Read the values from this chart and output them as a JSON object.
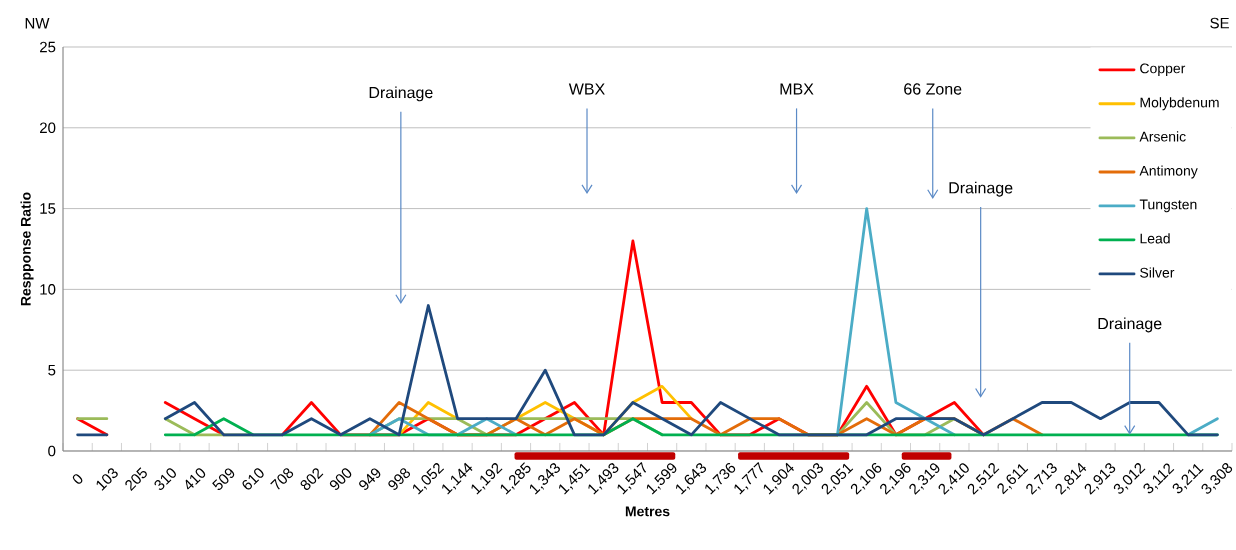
{
  "chart_data": {
    "type": "line",
    "xlabel": "Metres",
    "ylabel": "Respponse Ratio",
    "categories": [
      "0",
      "103",
      "205",
      "310",
      "410",
      "509",
      "610",
      "708",
      "802",
      "900",
      "949",
      "998",
      "1,052",
      "1,144",
      "1,192",
      "1,285",
      "1,343",
      "1,451",
      "1,493",
      "1,547",
      "1,599",
      "1,643",
      "1,736",
      "1,777",
      "1,904",
      "2,003",
      "2,051",
      "2,106",
      "2,196",
      "2,319",
      "2,410",
      "2,512",
      "2,611",
      "2,713",
      "2,814",
      "2,913",
      "3,012",
      "3,112",
      "3,211",
      "3,308"
    ],
    "series": [
      {
        "name": "Copper",
        "color": "#ff0000",
        "values": [
          2,
          1,
          null,
          3,
          2,
          1,
          null,
          1,
          3,
          1,
          1,
          1,
          2,
          1,
          1,
          1,
          2,
          3,
          1,
          13,
          3,
          3,
          1,
          1,
          2,
          1,
          1,
          4,
          1,
          2,
          3,
          1,
          null,
          null,
          null,
          null,
          null,
          null,
          null,
          null
        ]
      },
      {
        "name": "Molybdenum",
        "color": "#ffc000",
        "values": [
          null,
          null,
          null,
          null,
          null,
          null,
          null,
          null,
          null,
          null,
          null,
          1,
          3,
          2,
          null,
          2,
          3,
          2,
          1,
          3,
          4,
          2,
          null,
          null,
          null,
          null,
          null,
          null,
          null,
          null,
          null,
          null,
          null,
          null,
          null,
          null,
          null,
          null,
          null,
          null
        ]
      },
      {
        "name": "Arsenic",
        "color": "#9bbb59",
        "values": [
          2,
          2,
          null,
          2,
          1,
          1,
          1,
          null,
          null,
          null,
          1,
          2,
          2,
          2,
          1,
          2,
          2,
          2,
          2,
          2,
          1,
          null,
          null,
          null,
          null,
          null,
          1,
          3,
          1,
          1,
          2,
          1,
          null,
          null,
          null,
          null,
          null,
          null,
          null,
          null
        ]
      },
      {
        "name": "Antimony",
        "color": "#e36c09",
        "values": [
          null,
          null,
          null,
          null,
          null,
          null,
          null,
          null,
          null,
          null,
          1,
          3,
          2,
          1,
          1,
          2,
          1,
          2,
          1,
          2,
          2,
          2,
          1,
          2,
          2,
          1,
          1,
          2,
          1,
          2,
          2,
          1,
          2,
          1,
          null,
          null,
          null,
          null,
          null,
          null
        ]
      },
      {
        "name": "Tungsten",
        "color": "#4bacc6",
        "values": [
          null,
          null,
          null,
          null,
          null,
          null,
          null,
          null,
          null,
          null,
          1,
          2,
          1,
          1,
          2,
          1,
          null,
          null,
          null,
          null,
          null,
          null,
          null,
          null,
          null,
          null,
          1,
          15,
          3,
          2,
          1,
          null,
          null,
          null,
          null,
          null,
          null,
          null,
          1,
          2
        ]
      },
      {
        "name": "Lead",
        "color": "#00b050",
        "values": [
          null,
          null,
          null,
          1,
          1,
          2,
          1,
          1,
          1,
          1,
          1,
          1,
          1,
          1,
          1,
          1,
          1,
          1,
          1,
          2,
          1,
          1,
          1,
          1,
          1,
          1,
          1,
          1,
          1,
          1,
          1,
          1,
          1,
          1,
          1,
          1,
          1,
          1,
          1,
          1
        ]
      },
      {
        "name": "Silver",
        "color": "#1f497d",
        "values": [
          1,
          1,
          null,
          2,
          3,
          1,
          1,
          1,
          2,
          1,
          2,
          1,
          9,
          2,
          2,
          2,
          5,
          1,
          1,
          3,
          2,
          1,
          3,
          2,
          1,
          1,
          1,
          1,
          2,
          2,
          2,
          1,
          2,
          3,
          3,
          2,
          3,
          3,
          1,
          1
        ]
      }
    ],
    "ylim": [
      0,
      25
    ],
    "yticks": [
      0,
      5,
      10,
      15,
      20,
      25
    ],
    "grid": "y",
    "legend": "top right",
    "line_style": "solid",
    "annotations": [
      "NW",
      "SE",
      "Drainage",
      "WBX",
      "MBX",
      "66 Zone",
      "Drainage",
      {
        "text": "Drainage",
        "x": "3,012",
        "y": 1
      }
    ]
  }
}
